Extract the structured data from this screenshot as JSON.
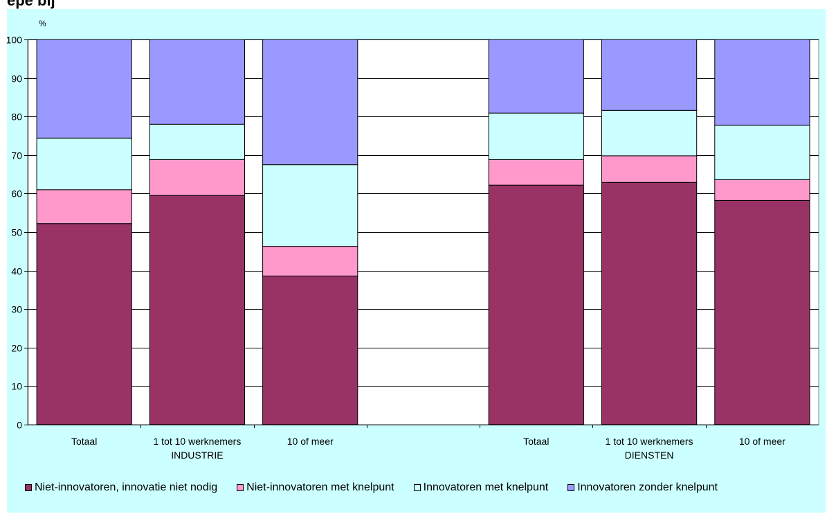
{
  "chart_data": {
    "type": "bar",
    "stacked": true,
    "percent_symbol": "%",
    "ylim": [
      0,
      100
    ],
    "yticks": [
      0,
      10,
      20,
      30,
      40,
      50,
      60,
      70,
      80,
      90,
      100
    ],
    "grid": true,
    "legend_position": "bottom",
    "groups": [
      {
        "label": "INDUSTRIE",
        "categories": [
          "Totaal",
          "1 tot 10 werknemers",
          "10 of meer"
        ]
      },
      {
        "label": "DIENSTEN",
        "categories": [
          "Totaal",
          "1 tot 10 werknemers",
          "10 of meer"
        ]
      }
    ],
    "series": [
      {
        "name": "Niet-innovatoren, innovatie niet nodig",
        "color": "#993366",
        "values": [
          52.2,
          59.5,
          38.6,
          62.2,
          62.9,
          58.2
        ]
      },
      {
        "name": "Niet-innovatoren met knelpunt",
        "color": "#ff99cc",
        "values": [
          8.8,
          9.3,
          7.7,
          6.6,
          6.9,
          5.4
        ]
      },
      {
        "name": "Innovatoren met knelpunt",
        "color": "#ccffff",
        "values": [
          13.4,
          9.2,
          21.2,
          12.1,
          11.8,
          14.1
        ]
      },
      {
        "name": "Innovatoren zonder knelpunt",
        "color": "#9999ff",
        "values": [
          25.6,
          22.0,
          32.5,
          19.1,
          18.4,
          22.3
        ]
      }
    ]
  }
}
